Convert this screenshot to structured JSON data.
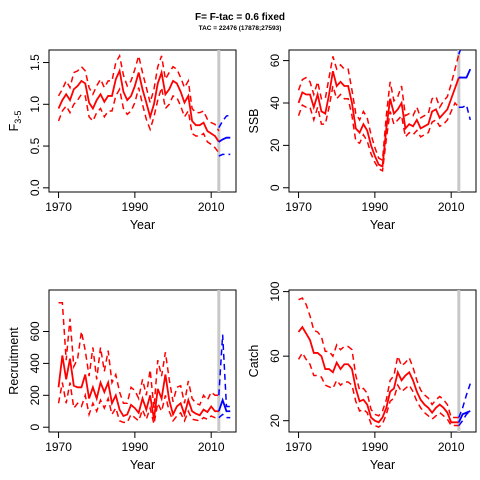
{
  "title": "F= F-tac = 0.6 fixed",
  "subtitle": "TAC = 22476 (17878;27593)",
  "colors": {
    "hist": "#ff0000",
    "proj": "#0000ff",
    "vline": "#c8c8c8"
  },
  "vline_year": 2012,
  "chart_data": [
    {
      "type": "line",
      "id": "F",
      "ylabel": "F",
      "ylabel_sub": "3-5",
      "xlabel": "Year",
      "xlim": [
        1967.5,
        2016.5
      ],
      "ylim": [
        -0.05,
        1.65
      ],
      "xticks": [
        "1970",
        "1990",
        "2010"
      ],
      "yticks": [
        "0.0",
        "0.5",
        "1.0",
        "1.5"
      ],
      "historical": {
        "x": [
          1970,
          1971,
          1972,
          1973,
          1974,
          1975,
          1976,
          1977,
          1978,
          1979,
          1980,
          1981,
          1982,
          1983,
          1984,
          1985,
          1986,
          1987,
          1988,
          1989,
          1990,
          1991,
          1992,
          1993,
          1994,
          1995,
          1996,
          1997,
          1998,
          1999,
          2000,
          2001,
          2002,
          2003,
          2004,
          2005,
          2006,
          2007,
          2008,
          2009,
          2010,
          2011,
          2012
        ],
        "mid": [
          0.95,
          1.05,
          1.12,
          1.05,
          1.18,
          1.22,
          1.28,
          1.25,
          1.02,
          0.95,
          1.05,
          1.12,
          1.03,
          1.1,
          1.1,
          1.3,
          1.4,
          1.15,
          1.05,
          1.1,
          1.22,
          1.38,
          1.18,
          1.02,
          0.85,
          1.0,
          1.25,
          1.38,
          1.12,
          1.18,
          1.28,
          1.25,
          1.15,
          1.02,
          1.1,
          0.8,
          0.75,
          0.75,
          0.78,
          0.68,
          0.65,
          0.62,
          0.55
        ],
        "lower": [
          0.8,
          0.92,
          0.98,
          0.9,
          1.0,
          1.05,
          1.12,
          1.1,
          0.85,
          0.8,
          0.9,
          0.95,
          0.85,
          0.92,
          0.92,
          1.1,
          1.18,
          0.95,
          0.88,
          0.92,
          1.02,
          1.2,
          1.0,
          0.82,
          0.7,
          0.85,
          1.05,
          1.2,
          0.95,
          1.0,
          1.1,
          1.08,
          0.98,
          0.85,
          0.92,
          0.65,
          0.62,
          0.62,
          0.65,
          0.55,
          0.52,
          0.48,
          0.42
        ],
        "upper": [
          1.1,
          1.18,
          1.28,
          1.2,
          1.38,
          1.4,
          1.45,
          1.4,
          1.2,
          1.12,
          1.22,
          1.3,
          1.2,
          1.28,
          1.28,
          1.5,
          1.58,
          1.35,
          1.22,
          1.28,
          1.42,
          1.58,
          1.38,
          1.2,
          1.02,
          1.18,
          1.45,
          1.58,
          1.3,
          1.38,
          1.45,
          1.42,
          1.32,
          1.2,
          1.28,
          0.95,
          0.9,
          0.9,
          0.92,
          0.82,
          0.78,
          0.76,
          0.68
        ]
      },
      "projection": {
        "x": [
          2012,
          2013,
          2014,
          2015
        ],
        "mid": [
          0.55,
          0.58,
          0.6,
          0.6
        ],
        "lower": [
          0.38,
          0.4,
          0.4,
          0.4
        ],
        "upper": [
          0.72,
          0.8,
          0.86,
          0.87
        ]
      }
    },
    {
      "type": "line",
      "id": "SSB",
      "ylabel": "SSB",
      "ylabel_sub": "",
      "xlabel": "Year",
      "xlim": [
        1967.5,
        2016.5
      ],
      "ylim": [
        -2,
        65
      ],
      "xticks": [
        "1970",
        "1990",
        "2010"
      ],
      "yticks": [
        "0",
        "20",
        "40",
        "60"
      ],
      "historical": {
        "x": [
          1970,
          1971,
          1972,
          1973,
          1974,
          1975,
          1976,
          1977,
          1978,
          1979,
          1980,
          1981,
          1982,
          1983,
          1984,
          1985,
          1986,
          1987,
          1988,
          1989,
          1990,
          1991,
          1992,
          1993,
          1994,
          1995,
          1996,
          1997,
          1998,
          1999,
          2000,
          2001,
          2002,
          2003,
          2004,
          2005,
          2006,
          2007,
          2008,
          2009,
          2010,
          2011,
          2012
        ],
        "mid": [
          40,
          45,
          44,
          44,
          38,
          44,
          36,
          35,
          44,
          55,
          48,
          50,
          48,
          48,
          40,
          28,
          26,
          30,
          27,
          20,
          15,
          11,
          10,
          28,
          42,
          35,
          37,
          40,
          28,
          30,
          29,
          32,
          28,
          29,
          30,
          36,
          37,
          33,
          35,
          37,
          42,
          47,
          52
        ],
        "lower": [
          34,
          39,
          38,
          38,
          32,
          38,
          30,
          30,
          38,
          48,
          42,
          44,
          42,
          42,
          34,
          22,
          21,
          25,
          22,
          16,
          12,
          9,
          8,
          23,
          36,
          30,
          32,
          34,
          24,
          26,
          25,
          27,
          24,
          25,
          26,
          31,
          32,
          29,
          30,
          32,
          36,
          40,
          38
        ],
        "upper": [
          46,
          51,
          52,
          50,
          44,
          50,
          42,
          42,
          52,
          62,
          56,
          58,
          56,
          56,
          46,
          35,
          32,
          36,
          33,
          25,
          19,
          14,
          13,
          34,
          50,
          41,
          43,
          48,
          34,
          35,
          34,
          38,
          33,
          34,
          35,
          42,
          43,
          38,
          41,
          43,
          49,
          56,
          63
        ]
      },
      "projection": {
        "x": [
          2012,
          2013,
          2014,
          2015
        ],
        "mid": [
          52,
          52,
          52,
          56
        ],
        "lower": [
          38,
          38,
          39,
          32
        ],
        "upper": [
          63,
          68,
          72,
          75
        ]
      }
    },
    {
      "type": "line",
      "id": "Recruitment",
      "ylabel": "Recruitment",
      "ylabel_sub": "",
      "xlabel": "Year",
      "xlim": [
        1967.5,
        2016.5
      ],
      "ylim": [
        -30,
        860
      ],
      "xticks": [
        "1970",
        "1990",
        "2010"
      ],
      "yticks": [
        "0",
        "200",
        "400",
        "600"
      ],
      "historical": {
        "x": [
          1970,
          1971,
          1972,
          1973,
          1974,
          1975,
          1976,
          1977,
          1978,
          1979,
          1980,
          1981,
          1982,
          1983,
          1984,
          1985,
          1986,
          1987,
          1988,
          1989,
          1990,
          1991,
          1992,
          1993,
          1994,
          1995,
          1996,
          1997,
          1998,
          1999,
          2000,
          2001,
          2002,
          2003,
          2004,
          2005,
          2006,
          2007,
          2008,
          2009,
          2010,
          2011,
          2012
        ],
        "mid": [
          250,
          450,
          300,
          430,
          260,
          250,
          250,
          330,
          180,
          250,
          180,
          280,
          220,
          280,
          150,
          200,
          110,
          70,
          80,
          140,
          120,
          90,
          180,
          110,
          200,
          50,
          240,
          180,
          330,
          170,
          80,
          130,
          150,
          80,
          170,
          100,
          85,
          75,
          110,
          95,
          130,
          100,
          100
        ],
        "lower": [
          150,
          280,
          150,
          280,
          120,
          150,
          130,
          200,
          80,
          150,
          100,
          170,
          120,
          180,
          80,
          120,
          40,
          30,
          30,
          80,
          60,
          40,
          110,
          50,
          120,
          20,
          150,
          100,
          200,
          100,
          40,
          70,
          90,
          40,
          100,
          50,
          45,
          40,
          60,
          50,
          70,
          60,
          60
        ],
        "upper": [
          780,
          780,
          420,
          680,
          380,
          430,
          600,
          480,
          320,
          500,
          300,
          500,
          350,
          480,
          280,
          330,
          220,
          150,
          150,
          250,
          230,
          180,
          300,
          200,
          360,
          120,
          420,
          320,
          470,
          300,
          160,
          250,
          260,
          150,
          290,
          180,
          150,
          140,
          200,
          170,
          220,
          200,
          200
        ]
      },
      "projection": {
        "x": [
          2012,
          2013,
          2014,
          2015
        ],
        "mid": [
          100,
          170,
          100,
          100
        ],
        "lower": [
          60,
          80,
          60,
          60
        ],
        "upper": [
          200,
          580,
          130,
          130
        ]
      }
    },
    {
      "type": "line",
      "id": "Catch",
      "ylabel": "Catch",
      "ylabel_sub": "",
      "xlabel": "Year",
      "xlim": [
        1967.5,
        2016.5
      ],
      "ylim": [
        13,
        101
      ],
      "xticks": [
        "1970",
        "1990",
        "2010"
      ],
      "yticks": [
        "20",
        "60",
        "100"
      ],
      "historical": {
        "x": [
          1970,
          1971,
          1972,
          1973,
          1974,
          1975,
          1976,
          1977,
          1978,
          1979,
          1980,
          1981,
          1982,
          1983,
          1984,
          1985,
          1986,
          1987,
          1988,
          1989,
          1990,
          1991,
          1992,
          1993,
          1994,
          1995,
          1996,
          1997,
          1998,
          1999,
          2000,
          2001,
          2002,
          2003,
          2004,
          2005,
          2006,
          2007,
          2008,
          2009,
          2010,
          2011,
          2012
        ],
        "mid": [
          75,
          78,
          74,
          70,
          62,
          62,
          60,
          52,
          52,
          50,
          56,
          52,
          55,
          55,
          52,
          40,
          32,
          33,
          30,
          22,
          20,
          19,
          22,
          28,
          38,
          40,
          50,
          45,
          48,
          50,
          45,
          38,
          33,
          30,
          28,
          25,
          28,
          30,
          28,
          25,
          19,
          19,
          19
        ],
        "lower": [
          58,
          62,
          58,
          55,
          48,
          48,
          47,
          42,
          41,
          40,
          45,
          42,
          44,
          44,
          42,
          32,
          26,
          27,
          25,
          18,
          17,
          16,
          18,
          24,
          32,
          34,
          42,
          38,
          40,
          42,
          38,
          32,
          28,
          25,
          23,
          21,
          23,
          25,
          23,
          21,
          17,
          17,
          17
        ],
        "upper": [
          95,
          96,
          92,
          85,
          76,
          75,
          72,
          63,
          63,
          60,
          67,
          64,
          66,
          66,
          64,
          48,
          39,
          40,
          37,
          27,
          24,
          23,
          26,
          33,
          45,
          48,
          60,
          54,
          56,
          59,
          53,
          45,
          39,
          36,
          34,
          30,
          33,
          35,
          33,
          30,
          22,
          22,
          22
        ]
      },
      "projection": {
        "x": [
          2012,
          2013,
          2014,
          2015
        ],
        "mid": [
          19,
          24,
          25,
          26
        ],
        "lower": [
          17,
          20,
          24,
          26
        ],
        "upper": [
          22,
          28,
          36,
          43
        ]
      }
    }
  ]
}
